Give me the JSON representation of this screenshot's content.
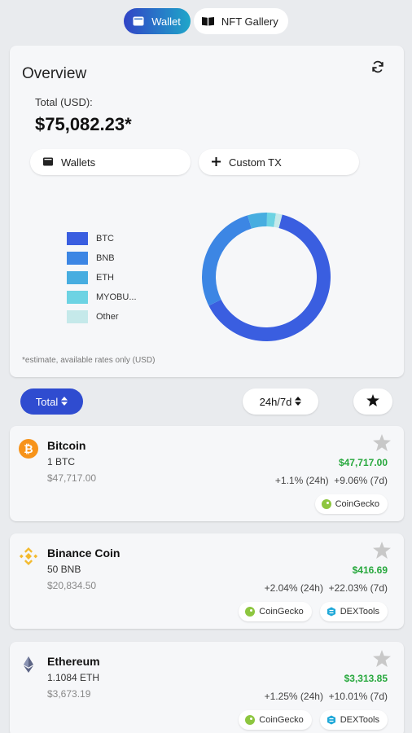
{
  "tabs": {
    "wallet": "Wallet",
    "nft_gallery": "NFT Gallery"
  },
  "overview": {
    "title": "Overview",
    "total_label": "Total (USD):",
    "total_value": "$75,082.23*",
    "wallets_button": "Wallets",
    "custom_tx_button": "Custom TX",
    "footnote": "*estimate, available rates only (USD)",
    "legend": [
      {
        "label": "BTC",
        "color": "#3a5ee0"
      },
      {
        "label": "BNB",
        "color": "#3c86e4"
      },
      {
        "label": "ETH",
        "color": "#47ade0"
      },
      {
        "label": "MYOBU...",
        "color": "#6dd3e3"
      },
      {
        "label": "Other",
        "color": "#c5e9ea"
      }
    ]
  },
  "chart_data": {
    "type": "pie",
    "categories": [
      "BTC",
      "BNB",
      "ETH",
      "MYOBU...",
      "Other"
    ],
    "values": [
      63.6,
      27.7,
      4.9,
      2.2,
      1.6
    ],
    "colors": [
      "#3a5ee0",
      "#3c86e4",
      "#47ade0",
      "#6dd3e3",
      "#c5e9ea"
    ]
  },
  "controls": {
    "total_label": "Total",
    "period_label": "24h/7d"
  },
  "coins": [
    {
      "name": "Bitcoin",
      "amount": "1 BTC",
      "value": "$47,717.00",
      "price": "$47,717.00",
      "change": "+1.1% (24h)  +9.06% (7d)",
      "sources": [
        "CoinGecko"
      ]
    },
    {
      "name": "Binance Coin",
      "amount": "50 BNB",
      "value": "$20,834.50",
      "price": "$416.69",
      "change": "+2.04% (24h)  +22.03% (7d)",
      "sources": [
        "CoinGecko",
        "DEXTools"
      ]
    },
    {
      "name": "Ethereum",
      "amount": "1.1084 ETH",
      "value": "$3,673.19",
      "price": "$3,313.85",
      "change": "+1.25% (24h)  +10.01% (7d)",
      "sources": [
        "CoinGecko",
        "DEXTools"
      ]
    }
  ]
}
